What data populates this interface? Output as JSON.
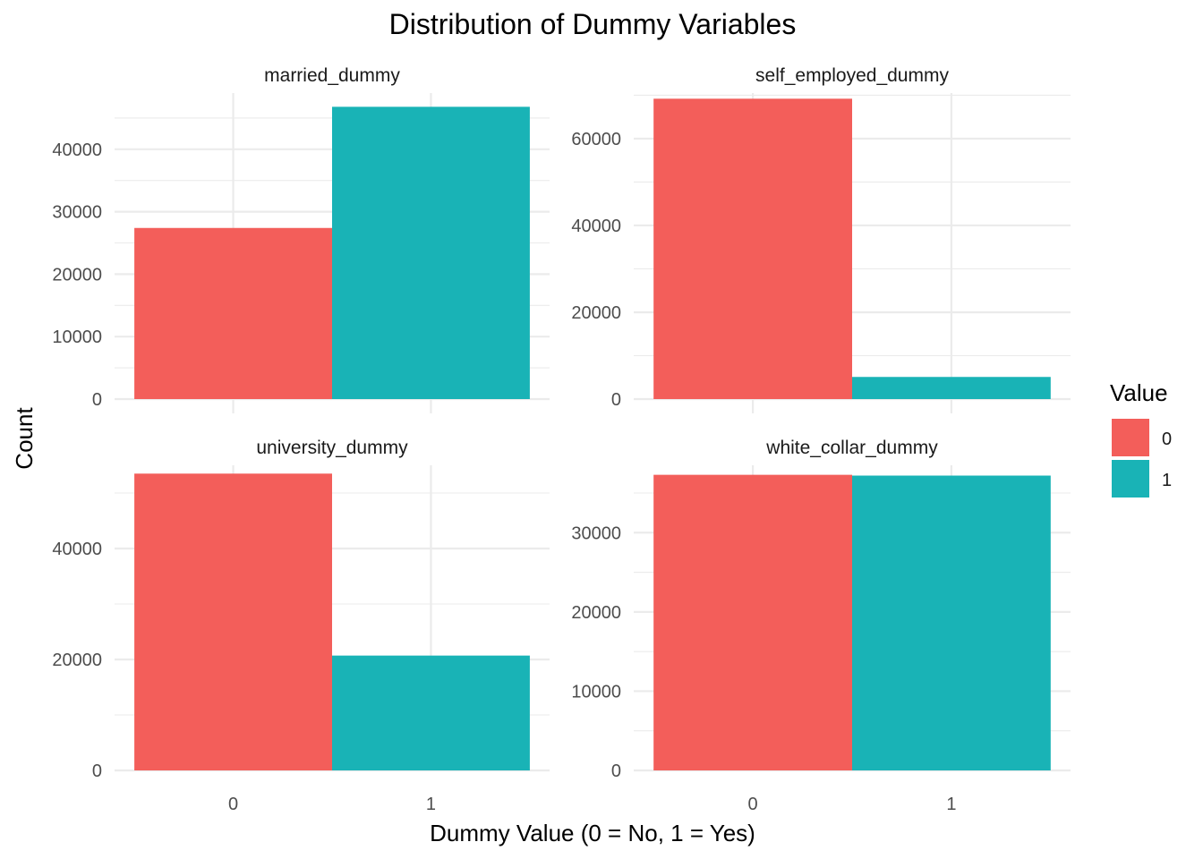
{
  "title": "Distribution of Dummy Variables",
  "x_axis_label": "Dummy Value (0 = No, 1 = Yes)",
  "y_axis_label": "Count",
  "legend": {
    "title": "Value",
    "items": [
      {
        "label": "0",
        "color": "#F35E5A"
      },
      {
        "label": "1",
        "color": "#19B3B6"
      }
    ]
  },
  "chart_data": {
    "type": "bar",
    "categories": [
      "0",
      "1"
    ],
    "facets": [
      {
        "name": "married_dummy",
        "values": [
          27400,
          46800
        ],
        "yticks": [
          0,
          10000,
          20000,
          30000,
          40000
        ],
        "ylim": [
          0,
          49000
        ]
      },
      {
        "name": "self_employed_dummy",
        "values": [
          69200,
          5100
        ],
        "yticks": [
          0,
          20000,
          40000,
          60000
        ],
        "ylim": [
          0,
          70500
        ]
      },
      {
        "name": "university_dummy",
        "values": [
          53500,
          20700
        ],
        "yticks": [
          0,
          20000,
          40000
        ],
        "ylim": [
          0,
          55000
        ]
      },
      {
        "name": "white_collar_dummy",
        "values": [
          37300,
          37200
        ],
        "yticks": [
          0,
          10000,
          20000,
          30000
        ],
        "ylim": [
          0,
          38500
        ]
      }
    ],
    "colors": {
      "0": "#F35E5A",
      "1": "#19B3B6"
    },
    "grid": true,
    "legend_position": "right"
  }
}
